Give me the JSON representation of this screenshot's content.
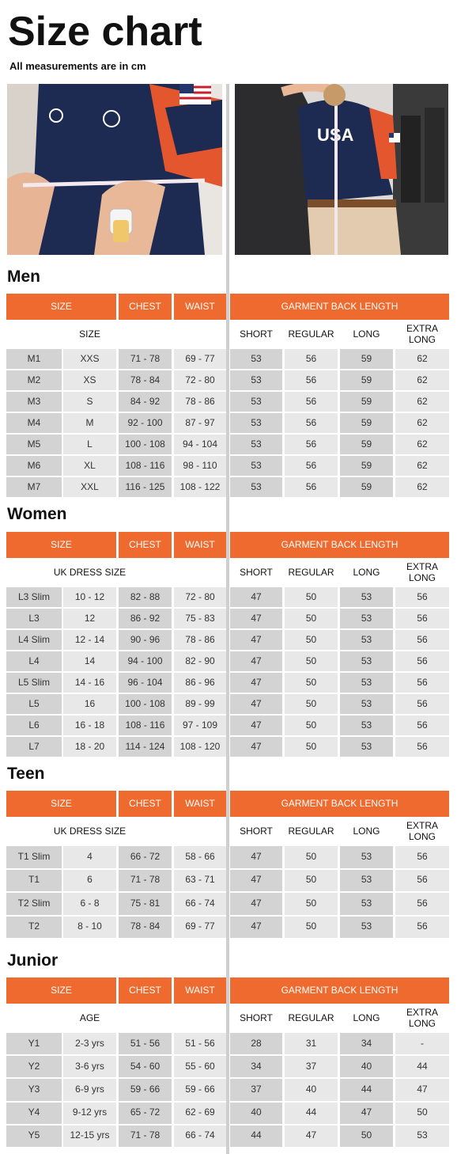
{
  "page": {
    "title": "Size chart",
    "subtitle": "All measurements are in cm"
  },
  "photos": {
    "left": {
      "icon": "chest-measurement-photo"
    },
    "right": {
      "icon": "back-length-measurement-photo",
      "shirt_text": "USA"
    }
  },
  "colors": {
    "header": "#ee6a2e",
    "row_dark": "#d3d3d3",
    "row_light": "#e8e8e8",
    "divider": "#cfcfcf"
  },
  "header_labels": {
    "size": "SIZE",
    "chest": "CHEST",
    "waist": "WAIST",
    "garment_back_length": "GARMENT BACK LENGTH"
  },
  "length_labels": {
    "short": "SHORT",
    "regular": "REGULAR",
    "long": "LONG",
    "extra_long": "EXTRA LONG"
  },
  "sections": [
    {
      "id": "men",
      "title": "Men",
      "size_label": "SIZE",
      "rows": [
        [
          "M1",
          "XXS",
          "71 - 78",
          "69 - 77",
          "53",
          "56",
          "59",
          "62"
        ],
        [
          "M2",
          "XS",
          "78 - 84",
          "72 - 80",
          "53",
          "56",
          "59",
          "62"
        ],
        [
          "M3",
          "S",
          "84 - 92",
          "78 - 86",
          "53",
          "56",
          "59",
          "62"
        ],
        [
          "M4",
          "M",
          "92 - 100",
          "87 - 97",
          "53",
          "56",
          "59",
          "62"
        ],
        [
          "M5",
          "L",
          "100 - 108",
          "94 - 104",
          "53",
          "56",
          "59",
          "62"
        ],
        [
          "M6",
          "XL",
          "108 - 116",
          "98 - 110",
          "53",
          "56",
          "59",
          "62"
        ],
        [
          "M7",
          "XXL",
          "116 - 125",
          "108 - 122",
          "53",
          "56",
          "59",
          "62"
        ]
      ]
    },
    {
      "id": "women",
      "title": "Women",
      "size_label": "UK DRESS SIZE",
      "rows": [
        [
          "L3 Slim",
          "10 - 12",
          "82 - 88",
          "72 - 80",
          "47",
          "50",
          "53",
          "56"
        ],
        [
          "L3",
          "12",
          "86 - 92",
          "75 - 83",
          "47",
          "50",
          "53",
          "56"
        ],
        [
          "L4 Slim",
          "12 - 14",
          "90 - 96",
          "78 - 86",
          "47",
          "50",
          "53",
          "56"
        ],
        [
          "L4",
          "14",
          "94 - 100",
          "82 - 90",
          "47",
          "50",
          "53",
          "56"
        ],
        [
          "L5 Slim",
          "14 - 16",
          "96 - 104",
          "86 - 96",
          "47",
          "50",
          "53",
          "56"
        ],
        [
          "L5",
          "16",
          "100 - 108",
          "89 - 99",
          "47",
          "50",
          "53",
          "56"
        ],
        [
          "L6",
          "16 - 18",
          "108 - 116",
          "97 - 109",
          "47",
          "50",
          "53",
          "56"
        ],
        [
          "L7",
          "18 - 20",
          "114 - 124",
          "108 - 120",
          "47",
          "50",
          "53",
          "56"
        ]
      ]
    },
    {
      "id": "teen",
      "title": "Teen",
      "size_label": "UK DRESS SIZE",
      "rows": [
        [
          "T1 Slim",
          "4",
          "66 - 72",
          "58 - 66",
          "47",
          "50",
          "53",
          "56"
        ],
        [
          "T1",
          "6",
          "71 - 78",
          "63 - 71",
          "47",
          "50",
          "53",
          "56"
        ],
        [
          "T2 Slim",
          "6 - 8",
          "75 - 81",
          "66 - 74",
          "47",
          "50",
          "53",
          "56"
        ],
        [
          "T2",
          "8 - 10",
          "78 - 84",
          "69 - 77",
          "47",
          "50",
          "53",
          "56"
        ]
      ]
    },
    {
      "id": "junior",
      "title": "Junior",
      "size_label": "AGE",
      "rows": [
        [
          "Y1",
          "2-3 yrs",
          "51 - 56",
          "51 - 56",
          "28",
          "31",
          "34",
          "-"
        ],
        [
          "Y2",
          "3-6 yrs",
          "54 - 60",
          "55 - 60",
          "34",
          "37",
          "40",
          "44"
        ],
        [
          "Y3",
          "6-9 yrs",
          "59 - 66",
          "59 - 66",
          "37",
          "40",
          "44",
          "47"
        ],
        [
          "Y4",
          "9-12 yrs",
          "65 - 72",
          "62 - 69",
          "40",
          "44",
          "47",
          "50"
        ],
        [
          "Y5",
          "12-15 yrs",
          "71 - 78",
          "66 - 74",
          "44",
          "47",
          "50",
          "53"
        ]
      ]
    }
  ]
}
